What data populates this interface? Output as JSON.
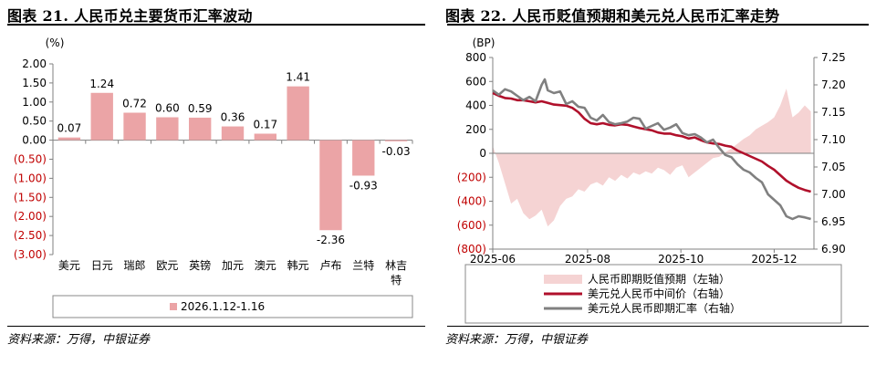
{
  "left": {
    "title": "图表 21. 人民币兑主要货币汇率波动",
    "source": "资料来源：万得，中银证券",
    "chart_data": {
      "type": "bar",
      "title": "图表 21. 人民币兑主要货币汇率波动",
      "ylabel": "(%)",
      "xlabel": "",
      "ylim": [
        -3.0,
        2.0
      ],
      "yticks": [
        2.0,
        1.5,
        1.0,
        0.5,
        0.0,
        -0.5,
        -1.0,
        -1.5,
        -2.0,
        -2.5,
        -3.0
      ],
      "ytick_labels": [
        "2.00",
        "1.50",
        "1.00",
        "0.50",
        "0.00",
        "(0.50)",
        "(1.00)",
        "(1.50)",
        "(2.00)",
        "(2.50)",
        "(3.00)"
      ],
      "categories": [
        "美元",
        "日元",
        "瑞郎",
        "欧元",
        "英镑",
        "加元",
        "澳元",
        "韩元",
        "卢布",
        "兰特",
        "林吉特"
      ],
      "values": [
        0.07,
        1.24,
        0.72,
        0.6,
        0.59,
        0.36,
        0.17,
        1.41,
        -2.36,
        -0.93,
        -0.03
      ],
      "value_labels": [
        "0.07",
        "1.24",
        "0.72",
        "0.60",
        "0.59",
        "0.36",
        "0.17",
        "1.41",
        "-2.36",
        "-0.93",
        "-0.03"
      ],
      "legend": [
        "2026.1.12-1.16"
      ],
      "legend_position": "bottom",
      "colors": {
        "bar": "#eba4a6",
        "negative_tick": "#c00000",
        "axis": "#808080"
      }
    }
  },
  "right": {
    "title": "图表 22. 人民币贬值预期和美元兑人民币汇率走势",
    "source": "资料来源：万得，中银证券",
    "chart_data": {
      "type": "area",
      "title": "图表 22. 人民币贬值预期和美元兑人民币汇率走势",
      "left_axis_label": "(BP)",
      "left_ylim": [
        -800,
        800
      ],
      "left_yticks": [
        800,
        600,
        400,
        200,
        0,
        -200,
        -400,
        -600,
        -800
      ],
      "left_ytick_labels": [
        "800",
        "600",
        "400",
        "200",
        "0",
        "(200)",
        "(400)",
        "(600)",
        "(800)"
      ],
      "right_ylim": [
        6.9,
        7.25
      ],
      "right_yticks": [
        7.25,
        7.2,
        7.15,
        7.1,
        7.05,
        7.0,
        6.95,
        6.9
      ],
      "right_ytick_labels": [
        "7.25",
        "7.20",
        "7.15",
        "7.10",
        "7.05",
        "7.00",
        "6.95",
        "6.90"
      ],
      "x_tick_labels": [
        "2025-06",
        "2025-08",
        "2025-10",
        "2025-12"
      ],
      "x_tick_positions": [
        0,
        62,
        123,
        184
      ],
      "x_range": [
        0,
        210
      ],
      "series": [
        {
          "name": "人民币即期贬值预期（左轴）",
          "axis": "left",
          "kind": "area",
          "color": "#f5d3d3",
          "x": [
            0,
            4,
            8,
            12,
            16,
            20,
            24,
            28,
            32,
            36,
            40,
            44,
            48,
            52,
            56,
            60,
            64,
            68,
            72,
            76,
            80,
            84,
            88,
            92,
            96,
            100,
            104,
            108,
            112,
            116,
            120,
            124,
            128,
            132,
            136,
            140,
            144,
            148,
            152,
            156,
            160,
            164,
            168,
            172,
            176,
            180,
            184,
            188,
            192,
            196,
            200,
            204,
            208
          ],
          "values": [
            60,
            -80,
            -250,
            -420,
            -380,
            -500,
            -550,
            -520,
            -470,
            -610,
            -560,
            -440,
            -380,
            -360,
            -300,
            -320,
            -260,
            -240,
            -270,
            -200,
            -230,
            -180,
            -210,
            -160,
            -180,
            -150,
            -170,
            -120,
            -140,
            -180,
            -120,
            -100,
            -200,
            -160,
            -120,
            -80,
            -40,
            -30,
            10,
            40,
            80,
            120,
            150,
            200,
            230,
            260,
            300,
            400,
            540,
            300,
            340,
            400,
            350
          ]
        },
        {
          "name": "美元兑人民币中间价（右轴）",
          "axis": "right",
          "kind": "line",
          "color": "#b0102b",
          "x": [
            0,
            4,
            8,
            12,
            16,
            20,
            24,
            28,
            32,
            36,
            40,
            44,
            48,
            52,
            56,
            60,
            64,
            68,
            72,
            76,
            80,
            84,
            88,
            92,
            96,
            100,
            104,
            108,
            112,
            116,
            120,
            124,
            128,
            132,
            136,
            140,
            144,
            148,
            152,
            156,
            160,
            164,
            168,
            172,
            176,
            180,
            184,
            188,
            192,
            196,
            200,
            204,
            208
          ],
          "values": [
            7.185,
            7.18,
            7.176,
            7.175,
            7.172,
            7.172,
            7.17,
            7.168,
            7.17,
            7.167,
            7.164,
            7.163,
            7.162,
            7.158,
            7.15,
            7.138,
            7.13,
            7.128,
            7.13,
            7.127,
            7.126,
            7.128,
            7.127,
            7.124,
            7.121,
            7.119,
            7.117,
            7.113,
            7.111,
            7.111,
            7.108,
            7.106,
            7.102,
            7.104,
            7.099,
            7.095,
            7.093,
            7.092,
            7.089,
            7.087,
            7.08,
            7.075,
            7.07,
            7.065,
            7.06,
            7.052,
            7.045,
            7.035,
            7.025,
            7.018,
            7.012,
            7.008,
            7.005
          ]
        },
        {
          "name": "美元兑人民币即期汇率（右轴）",
          "axis": "right",
          "kind": "line",
          "color": "#808080",
          "x": [
            0,
            4,
            8,
            12,
            16,
            20,
            24,
            28,
            32,
            34,
            36,
            40,
            44,
            48,
            52,
            56,
            60,
            64,
            68,
            72,
            76,
            80,
            84,
            88,
            92,
            96,
            100,
            104,
            108,
            112,
            116,
            120,
            124,
            128,
            132,
            136,
            140,
            144,
            148,
            152,
            156,
            160,
            164,
            168,
            172,
            176,
            180,
            184,
            188,
            192,
            196,
            200,
            204,
            208
          ],
          "values": [
            7.19,
            7.182,
            7.192,
            7.188,
            7.18,
            7.172,
            7.178,
            7.17,
            7.2,
            7.21,
            7.19,
            7.185,
            7.188,
            7.165,
            7.17,
            7.16,
            7.158,
            7.14,
            7.135,
            7.145,
            7.132,
            7.128,
            7.13,
            7.133,
            7.14,
            7.138,
            7.12,
            7.125,
            7.13,
            7.118,
            7.122,
            7.128,
            7.112,
            7.108,
            7.11,
            7.104,
            7.095,
            7.1,
            7.085,
            7.072,
            7.068,
            7.055,
            7.045,
            7.04,
            7.03,
            7.022,
            7.0,
            6.99,
            6.98,
            6.96,
            6.955,
            6.96,
            6.958,
            6.955
          ]
        }
      ],
      "legend_position": "bottom"
    }
  }
}
